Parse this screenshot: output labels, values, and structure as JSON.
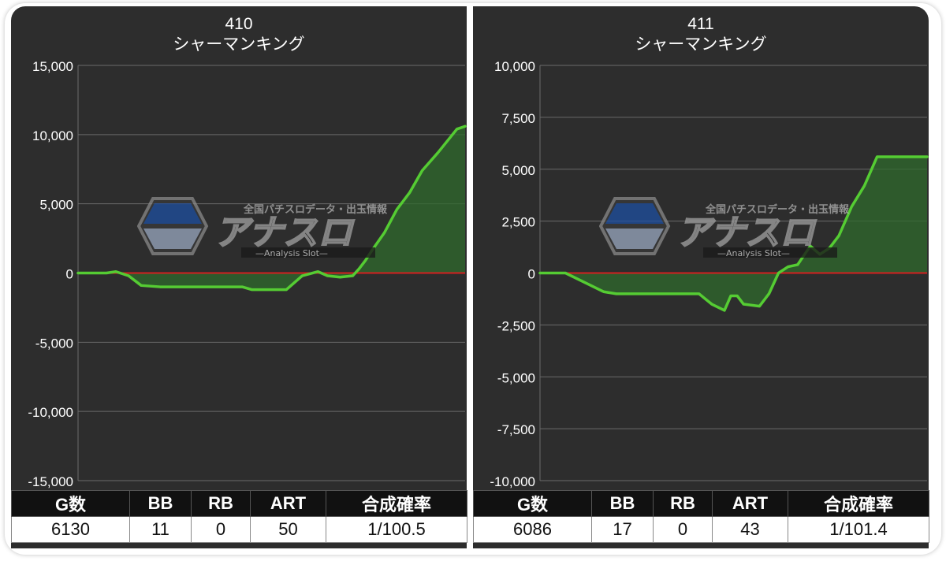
{
  "colors": {
    "panel_bg": "#2d2d2d",
    "grid": "#6a6a6a",
    "zero_line": "#d42020",
    "series_line": "#55cc33",
    "area_fill": "#2f6a2c",
    "axis_text": "#ffffff"
  },
  "watermark": {
    "tagline": "全国パチスロデータ・出玉情報",
    "brand": "アナスロ",
    "sub": "—Analysis Slot—",
    "icon": "hexagon-logo-icon"
  },
  "panels": [
    {
      "title_number": "410",
      "title_name": "シャーマンキング",
      "stats_headers": [
        "G数",
        "BB",
        "RB",
        "ART",
        "合成確率"
      ],
      "stats_values": [
        "6130",
        "11",
        "0",
        "50",
        "1/100.5"
      ],
      "chart_data": {
        "type": "area",
        "title": "410 シャーマンキング",
        "ylim": [
          -15000,
          15000
        ],
        "yticks": [
          15000,
          10000,
          5000,
          0,
          -5000,
          -10000,
          -15000
        ],
        "ytick_labels": [
          "15,000",
          "10,000",
          "5,000",
          "0",
          "-5,000",
          "-10,000",
          "-15,000"
        ],
        "xlim": [
          0,
          6130
        ],
        "grid": true,
        "baseline": 0,
        "x": [
          0,
          450,
          600,
          800,
          1000,
          1300,
          2000,
          2600,
          2750,
          3300,
          3550,
          3800,
          3950,
          4150,
          4350,
          4450,
          4550,
          4650,
          4850,
          5050,
          5250,
          5450,
          5700,
          6000,
          6130
        ],
        "values": [
          0,
          0,
          100,
          -200,
          -900,
          -1000,
          -1000,
          -1000,
          -1200,
          -1200,
          -200,
          100,
          -200,
          -300,
          -200,
          300,
          900,
          1600,
          2900,
          4600,
          5800,
          7400,
          8700,
          10400,
          10600
        ]
      }
    },
    {
      "title_number": "411",
      "title_name": "シャーマンキング",
      "stats_headers": [
        "G数",
        "BB",
        "RB",
        "ART",
        "合成確率"
      ],
      "stats_values": [
        "6086",
        "17",
        "0",
        "43",
        "1/101.4"
      ],
      "chart_data": {
        "type": "area",
        "title": "411 シャーマンキング",
        "ylim": [
          -10000,
          10000
        ],
        "yticks": [
          10000,
          7500,
          5000,
          2500,
          0,
          -2500,
          -5000,
          -7500,
          -10000
        ],
        "ytick_labels": [
          "10,000",
          "7,500",
          "5,000",
          "2,500",
          "0",
          "-2,500",
          "-5,000",
          "-7,500",
          "-10,000"
        ],
        "xlim": [
          0,
          6086
        ],
        "grid": true,
        "baseline": 0,
        "x": [
          0,
          400,
          600,
          800,
          1000,
          1200,
          2500,
          2700,
          2900,
          3000,
          3100,
          3200,
          3450,
          3600,
          3750,
          3900,
          4050,
          4250,
          4400,
          4550,
          4700,
          4900,
          5100,
          5300,
          5450,
          6086
        ],
        "values": [
          0,
          0,
          -300,
          -600,
          -900,
          -1000,
          -1000,
          -1500,
          -1800,
          -1100,
          -1100,
          -1500,
          -1600,
          -1000,
          0,
          300,
          400,
          1300,
          900,
          1200,
          1800,
          3200,
          4200,
          5600,
          5600,
          5600
        ]
      }
    }
  ]
}
